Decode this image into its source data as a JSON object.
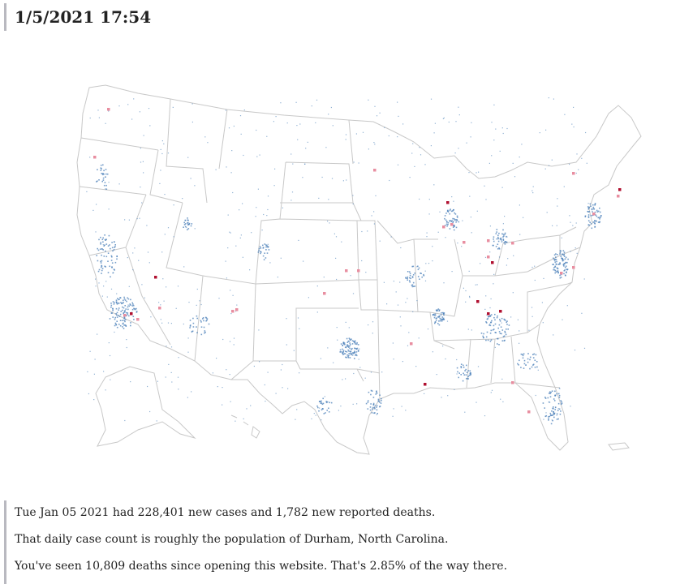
{
  "header": {
    "datetime": "1/5/2021 17:54"
  },
  "map": {
    "colors": {
      "case_dot": "#4a7fb8",
      "death_light": "#e88ea0",
      "death_dark": "#b01030",
      "state_border": "#c8c8c8"
    }
  },
  "footer": {
    "line1": "Tue Jan 05 2021 had 228,401 new cases and 1,782 new reported deaths.",
    "line2": "That daily case count is roughly the population of Durham, North Carolina.",
    "line3": "You've seen 10,809 deaths since opening this website. That's 2.85% of the way there."
  }
}
